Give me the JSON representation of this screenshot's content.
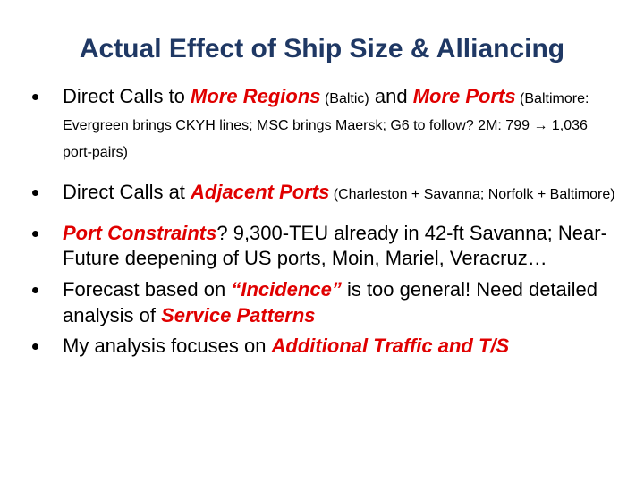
{
  "title": "Actual Effect of Ship Size & Alliancing",
  "bullets": [
    {
      "runs": [
        "Direct Calls to ",
        "More Regions",
        " (Baltic)",
        " and ",
        "More Ports",
        " (Baltimore: Evergreen brings CKYH lines; MSC brings Maersk; G6 to follow? 2M: 799 → 1,036 port-pairs)"
      ]
    },
    {
      "runs": [
        "Direct Calls at ",
        "Adjacent Ports",
        " (Charleston + Savanna; Norfolk + Baltimore)"
      ]
    },
    {
      "runs": [
        "Port Constraints",
        "? 9,300-TEU already in 42-ft Savanna; Near-Future deepening of US ports, Moin, Mariel, Veracruz…"
      ]
    },
    {
      "runs": [
        "Forecast based on ",
        "“Incidence”",
        "  is too general! Need detailed analysis of ",
        "Service Patterns"
      ]
    },
    {
      "runs": [
        "My analysis focuses on ",
        "Additional Traffic and T/S"
      ]
    }
  ]
}
